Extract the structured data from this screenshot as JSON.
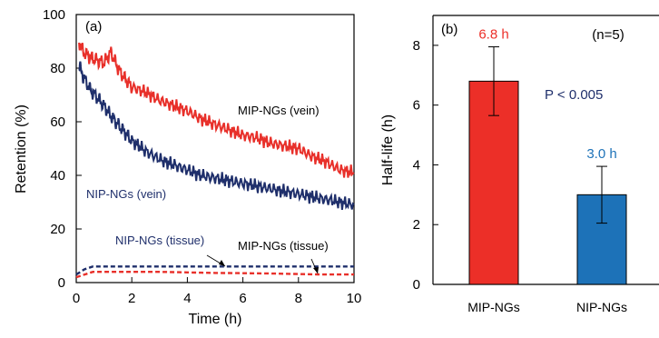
{
  "chart_data": [
    {
      "panel": "(a)",
      "type": "line",
      "xlabel": "Time (h)",
      "ylabel": "Retention (%)",
      "xlim": [
        0,
        10
      ],
      "ylim": [
        0,
        100
      ],
      "xticks": [
        "0",
        "2",
        "4",
        "6",
        "8",
        "10"
      ],
      "yticks": [
        "0",
        "20",
        "40",
        "60",
        "80",
        "100"
      ],
      "grid": false,
      "series": [
        {
          "name": "MIP-NGs (vein)",
          "color": "#e8302a",
          "style": "solid",
          "x": [
            0.1,
            0.25,
            0.5,
            0.75,
            1,
            1.25,
            1.5,
            1.75,
            2,
            2.5,
            3,
            3.5,
            4,
            4.5,
            5,
            5.5,
            6,
            6.5,
            7,
            7.5,
            8,
            8.5,
            9,
            9.5,
            10
          ],
          "y": [
            90,
            86,
            84,
            83,
            82,
            86,
            80,
            76,
            73,
            71,
            68,
            66,
            64,
            61,
            59,
            57,
            55,
            54,
            52,
            51,
            50,
            47,
            45,
            42,
            41
          ]
        },
        {
          "name": "NIP-NGs (vein)",
          "color": "#1f2f6b",
          "style": "solid",
          "x": [
            0.1,
            0.25,
            0.5,
            0.75,
            1,
            1.25,
            1.5,
            1.75,
            2,
            2.5,
            3,
            3.5,
            4,
            4.5,
            5,
            5.5,
            6,
            6.5,
            7,
            7.5,
            8,
            8.5,
            9,
            9.5,
            10
          ],
          "y": [
            81,
            77,
            72,
            69,
            66,
            62,
            59,
            56,
            53,
            49,
            46,
            44,
            42,
            40,
            39,
            38,
            37,
            36,
            35,
            34,
            33,
            32,
            31,
            30,
            29
          ]
        },
        {
          "name": "NIP-NGs (tissue)",
          "color": "#1f2f6b",
          "style": "dashed",
          "x": [
            0,
            0.3,
            0.6,
            1,
            2,
            3,
            4,
            5,
            6,
            7,
            8,
            9,
            10
          ],
          "y": [
            3,
            5,
            6,
            6,
            6,
            6,
            6,
            6,
            6,
            6,
            6,
            6,
            6
          ]
        },
        {
          "name": "MIP-NGs (tissue)",
          "color": "#e8302a",
          "style": "dashed",
          "x": [
            0,
            0.3,
            0.6,
            1,
            2,
            3,
            4,
            5,
            6,
            7,
            8,
            9,
            10
          ],
          "y": [
            2,
            3,
            4,
            4,
            4,
            4,
            3.8,
            3.6,
            3.5,
            3.4,
            3.2,
            3,
            3
          ]
        }
      ]
    },
    {
      "panel": "(b)",
      "type": "bar",
      "ylabel": "Half-life (h)",
      "ylim": [
        0,
        9
      ],
      "yticks": [
        "0",
        "2",
        "4",
        "6",
        "8"
      ],
      "categories": [
        "MIP-NGs",
        "NIP-NGs"
      ],
      "values": [
        6.8,
        3.0
      ],
      "errors": [
        1.15,
        0.95
      ],
      "bar_colors": [
        "#ec2f28",
        "#1d72b8"
      ],
      "value_labels": [
        "6.8 h",
        "3.0 h"
      ],
      "value_label_colors": [
        "#ec2f28",
        "#1d72b8"
      ],
      "annotations": [
        "(n=5)",
        "P < 0.005"
      ],
      "grid": false
    }
  ]
}
